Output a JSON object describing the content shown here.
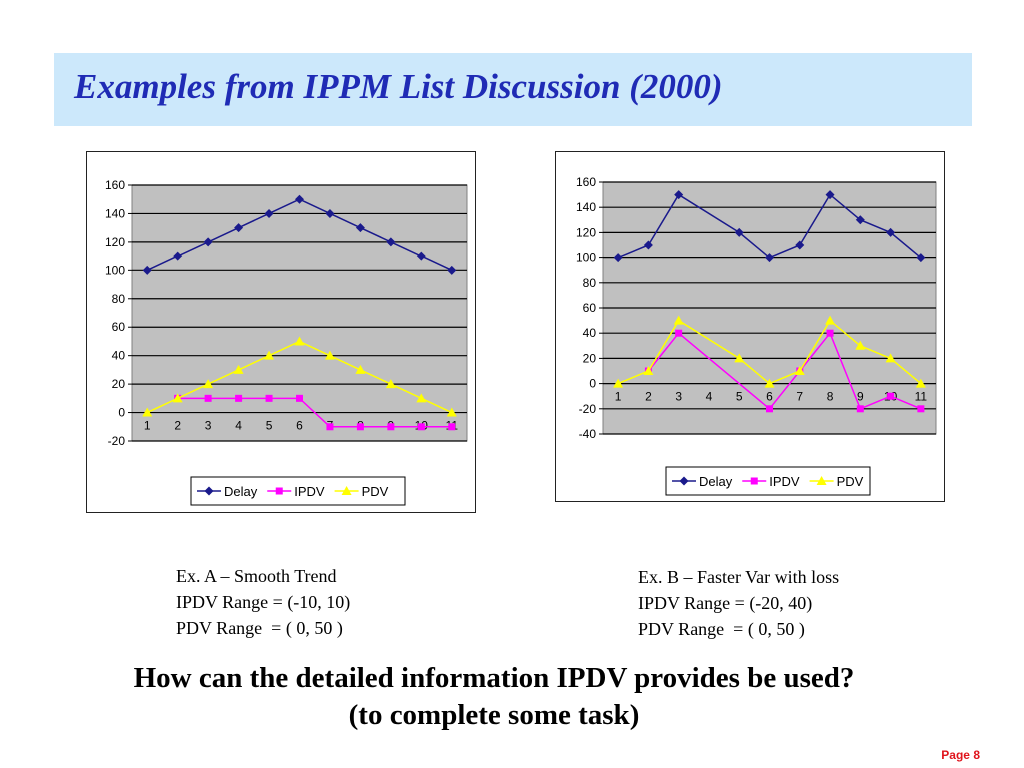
{
  "slide": {
    "title": "Examples from IPPM List Discussion (2000)",
    "question_line1": "How can the detailed information IPDV provides be used?",
    "question_line2": "(to complete some task)",
    "page_label": "Page 8"
  },
  "captions": [
    {
      "line1": "Ex. A – Smooth Trend",
      "line2": "IPDV Range = (-10, 10)",
      "line3": "PDV Range  = ( 0, 50 )"
    },
    {
      "line1": "Ex. B – Faster Var with loss",
      "line2": "IPDV Range = (-20, 40)",
      "line3": "PDV Range  = ( 0, 50 )"
    }
  ],
  "colors": {
    "title_bg": "#cce8fb",
    "title_text": "#1f2bb5",
    "plot_bg": "#c0c0c0",
    "page_label": "#e0141c"
  },
  "chart_data": [
    {
      "type": "line",
      "categories": [
        "1",
        "2",
        "3",
        "4",
        "5",
        "6",
        "7",
        "8",
        "9",
        "10",
        "11"
      ],
      "ylim": [
        -20,
        160
      ],
      "yticks": [
        -20,
        0,
        20,
        40,
        60,
        80,
        100,
        120,
        140,
        160
      ],
      "grid": true,
      "legend_position": "bottom",
      "series": [
        {
          "name": "Delay",
          "color": "#1a1a8c",
          "marker": "diamond",
          "values": [
            100,
            110,
            120,
            130,
            140,
            150,
            140,
            130,
            120,
            110,
            100
          ]
        },
        {
          "name": "IPDV",
          "color": "#ff00ff",
          "marker": "square",
          "values": [
            null,
            10,
            10,
            10,
            10,
            10,
            -10,
            -10,
            -10,
            -10,
            -10
          ]
        },
        {
          "name": "PDV",
          "color": "#ffff00",
          "marker": "triangle",
          "values": [
            0,
            10,
            20,
            30,
            40,
            50,
            40,
            30,
            20,
            10,
            0
          ]
        }
      ]
    },
    {
      "type": "line",
      "categories": [
        "1",
        "2",
        "3",
        "4",
        "5",
        "6",
        "7",
        "8",
        "9",
        "10",
        "11"
      ],
      "ylim": [
        -40,
        160
      ],
      "yticks": [
        -40,
        -20,
        0,
        20,
        40,
        60,
        80,
        100,
        120,
        140,
        160
      ],
      "grid": true,
      "legend_position": "bottom",
      "series": [
        {
          "name": "Delay",
          "color": "#1a1a8c",
          "marker": "diamond",
          "values": [
            100,
            110,
            150,
            null,
            120,
            100,
            110,
            150,
            130,
            120,
            100
          ]
        },
        {
          "name": "IPDV",
          "color": "#ff00ff",
          "marker": "square",
          "values": [
            null,
            10,
            40,
            null,
            null,
            -20,
            10,
            40,
            -20,
            -10,
            -20
          ]
        },
        {
          "name": "PDV",
          "color": "#ffff00",
          "marker": "triangle",
          "values": [
            0,
            10,
            50,
            null,
            20,
            0,
            10,
            50,
            30,
            20,
            0
          ]
        }
      ]
    }
  ]
}
